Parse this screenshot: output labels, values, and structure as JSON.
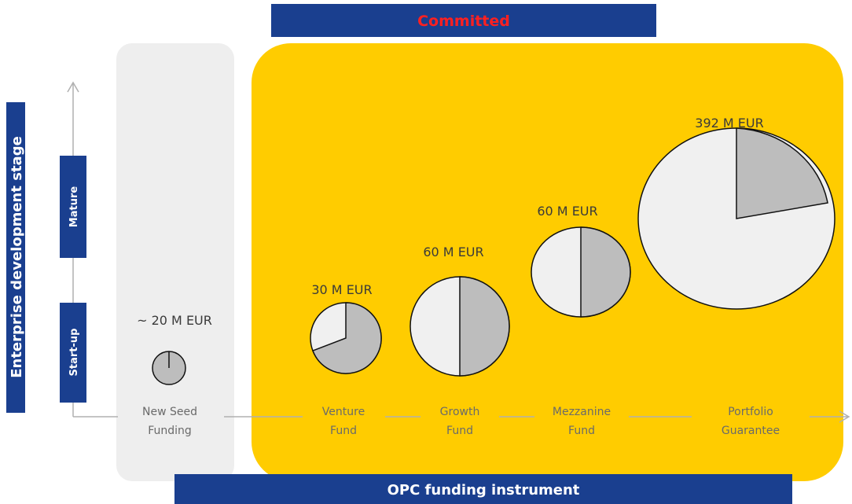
{
  "committed_banner": "Committed",
  "y_axis": {
    "title": "Enterprise development stage",
    "stages": [
      "Mature",
      "Start-up"
    ]
  },
  "instruments": [
    {
      "amount": "~ 20 M EUR",
      "name": [
        "New Seed",
        "Funding"
      ]
    },
    {
      "amount": "30 M EUR",
      "name": [
        "Venture",
        "Fund"
      ]
    },
    {
      "amount": "60 M EUR",
      "name": [
        "Growth",
        "Fund"
      ]
    },
    {
      "amount": "60 M EUR",
      "name": [
        "Mezzanine",
        "Fund"
      ]
    },
    {
      "amount": "392 M EUR",
      "name": [
        "Portfolio",
        "Guarantee"
      ]
    }
  ],
  "x_axis_title": "OPC funding instrument"
}
